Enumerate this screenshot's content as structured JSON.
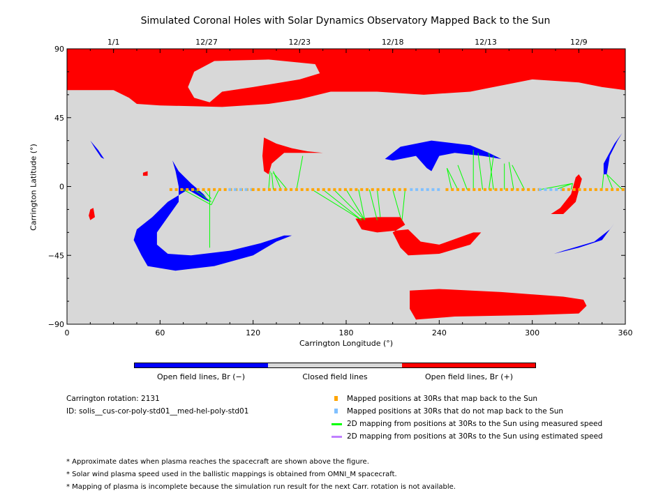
{
  "chart_data": {
    "type": "scatter",
    "title": "Simulated Coronal Holes with Solar Dynamics Observatory Mapped Back to the Sun",
    "xlabel": "Carrington Longitude (°)",
    "ylabel": "Carrington Latitude (°)",
    "xlim": [
      0,
      360
    ],
    "ylim": [
      -90,
      90
    ],
    "xticks": [
      0,
      60,
      120,
      180,
      240,
      300,
      360
    ],
    "yticks": [
      {
        "v": 90,
        "l": "90"
      },
      {
        "v": 45,
        "l": "45"
      },
      {
        "v": 0,
        "l": "0"
      },
      {
        "v": -45,
        "l": "−45"
      },
      {
        "v": -90,
        "l": "−90"
      }
    ],
    "top_dates": [
      {
        "lon": 30,
        "label": "1/1"
      },
      {
        "lon": 90,
        "label": "12/27"
      },
      {
        "lon": 150,
        "label": "12/23"
      },
      {
        "lon": 210,
        "label": "12/18"
      },
      {
        "lon": 270,
        "label": "12/13"
      },
      {
        "lon": 330,
        "label": "12/9"
      }
    ],
    "regions": [
      {
        "kind": "positive",
        "pts": [
          [
            0,
            90
          ],
          [
            360,
            90
          ],
          [
            360,
            63
          ],
          [
            345,
            65
          ],
          [
            330,
            68
          ],
          [
            300,
            70
          ],
          [
            260,
            62
          ],
          [
            230,
            60
          ],
          [
            200,
            62
          ],
          [
            170,
            62
          ],
          [
            150,
            57
          ],
          [
            130,
            54
          ],
          [
            100,
            52
          ],
          [
            60,
            53
          ],
          [
            45,
            54
          ],
          [
            40,
            58
          ],
          [
            30,
            63
          ],
          [
            0,
            63
          ]
        ]
      },
      {
        "kind": "closed",
        "pts": [
          [
            82,
            75
          ],
          [
            95,
            82
          ],
          [
            130,
            83
          ],
          [
            160,
            80
          ],
          [
            163,
            74
          ],
          [
            150,
            70
          ],
          [
            120,
            65
          ],
          [
            100,
            62
          ],
          [
            92,
            55
          ],
          [
            82,
            58
          ],
          [
            78,
            65
          ]
        ]
      },
      {
        "kind": "positive",
        "pts": [
          [
            221,
            -68
          ],
          [
            240,
            -67
          ],
          [
            280,
            -69
          ],
          [
            320,
            -72
          ],
          [
            333,
            -74
          ],
          [
            335,
            -78
          ],
          [
            330,
            -83
          ],
          [
            300,
            -84
          ],
          [
            250,
            -85
          ],
          [
            225,
            -87
          ],
          [
            221,
            -80
          ]
        ]
      },
      {
        "kind": "negative",
        "pts": [
          [
            68,
            17
          ],
          [
            72,
            10
          ],
          [
            80,
            2
          ],
          [
            88,
            -5
          ],
          [
            92,
            -10
          ],
          [
            88,
            -8
          ],
          [
            78,
            -2
          ],
          [
            65,
            -10
          ],
          [
            55,
            -20
          ],
          [
            45,
            -28
          ],
          [
            43,
            -35
          ],
          [
            48,
            -45
          ],
          [
            52,
            -52
          ],
          [
            70,
            -55
          ],
          [
            95,
            -52
          ],
          [
            120,
            -45
          ],
          [
            135,
            -36
          ],
          [
            145,
            -32
          ],
          [
            140,
            -32
          ],
          [
            125,
            -37
          ],
          [
            105,
            -42
          ],
          [
            80,
            -45
          ],
          [
            65,
            -44
          ],
          [
            58,
            -38
          ],
          [
            58,
            -30
          ],
          [
            65,
            -20
          ],
          [
            72,
            -10
          ],
          [
            72,
            0
          ],
          [
            70,
            10
          ]
        ]
      },
      {
        "kind": "negative",
        "pts": [
          [
            15,
            30
          ],
          [
            18,
            25
          ],
          [
            22,
            19
          ],
          [
            24,
            18
          ],
          [
            20,
            24
          ]
        ]
      },
      {
        "kind": "positive",
        "pts": [
          [
            15,
            -15
          ],
          [
            17,
            -14
          ],
          [
            18,
            -20
          ],
          [
            15,
            -22
          ],
          [
            14,
            -19
          ]
        ]
      },
      {
        "kind": "positive",
        "pts": [
          [
            49,
            9
          ],
          [
            52,
            10
          ],
          [
            52,
            7
          ],
          [
            49,
            7
          ]
        ]
      },
      {
        "kind": "positive",
        "pts": [
          [
            127,
            32
          ],
          [
            135,
            28
          ],
          [
            145,
            25
          ],
          [
            155,
            23
          ],
          [
            165,
            22
          ],
          [
            150,
            22
          ],
          [
            140,
            22
          ],
          [
            132,
            15
          ],
          [
            130,
            8
          ],
          [
            127,
            10
          ],
          [
            126,
            20
          ]
        ]
      },
      {
        "kind": "negative",
        "pts": [
          [
            205,
            18
          ],
          [
            215,
            26
          ],
          [
            235,
            30
          ],
          [
            260,
            27
          ],
          [
            272,
            22
          ],
          [
            280,
            18
          ],
          [
            268,
            20
          ],
          [
            250,
            22
          ],
          [
            240,
            20
          ],
          [
            235,
            10
          ],
          [
            232,
            12
          ],
          [
            225,
            20
          ],
          [
            210,
            17
          ]
        ]
      },
      {
        "kind": "positive",
        "pts": [
          [
            186,
            -21
          ],
          [
            200,
            -20
          ],
          [
            215,
            -20
          ],
          [
            218,
            -25
          ],
          [
            210,
            -30
          ],
          [
            215,
            -40
          ],
          [
            220,
            -45
          ],
          [
            240,
            -44
          ],
          [
            260,
            -38
          ],
          [
            267,
            -30
          ],
          [
            262,
            -30
          ],
          [
            240,
            -38
          ],
          [
            228,
            -36
          ],
          [
            220,
            -28
          ],
          [
            200,
            -30
          ],
          [
            190,
            -28
          ]
        ]
      },
      {
        "kind": "positive",
        "pts": [
          [
            312,
            -18
          ],
          [
            318,
            -14
          ],
          [
            325,
            -5
          ],
          [
            328,
            6
          ],
          [
            330,
            8
          ],
          [
            332,
            5
          ],
          [
            328,
            -10
          ],
          [
            320,
            -18
          ]
        ]
      },
      {
        "kind": "negative",
        "pts": [
          [
            348,
            8
          ],
          [
            350,
            20
          ],
          [
            355,
            30
          ],
          [
            358,
            35
          ],
          [
            353,
            28
          ],
          [
            346,
            15
          ],
          [
            346,
            8
          ]
        ]
      },
      {
        "kind": "negative",
        "pts": [
          [
            314,
            -44
          ],
          [
            330,
            -40
          ],
          [
            345,
            -35
          ],
          [
            353,
            -24
          ],
          [
            350,
            -28
          ],
          [
            340,
            -36
          ],
          [
            320,
            -42
          ]
        ]
      }
    ],
    "mapped_segments": [
      {
        "from": [
          67,
          120
        ],
        "status": "maps"
      },
      {
        "from": [
          105,
          120
        ],
        "status": "no_map"
      },
      {
        "from": [
          120,
          220
        ],
        "status": "maps"
      },
      {
        "from": [
          222,
          240
        ],
        "status": "no_map"
      },
      {
        "from": [
          245,
          305
        ],
        "status": "maps"
      },
      {
        "from": [
          305,
          320
        ],
        "status": "no_map"
      },
      {
        "from": [
          320,
          360
        ],
        "status": "maps"
      }
    ],
    "mapping_lines": [
      [
        75,
        93,
        -12
      ],
      [
        82,
        93,
        -10
      ],
      [
        88,
        93,
        -8
      ],
      [
        92,
        92,
        -40
      ],
      [
        98,
        93,
        -12
      ],
      [
        130,
        131,
        10
      ],
      [
        133,
        132,
        9
      ],
      [
        138,
        133,
        10
      ],
      [
        142,
        133,
        9
      ],
      [
        148,
        152,
        20
      ],
      [
        158,
        190,
        -22
      ],
      [
        165,
        190,
        -22
      ],
      [
        172,
        191,
        -21
      ],
      [
        180,
        192,
        -22
      ],
      [
        188,
        192,
        -22
      ],
      [
        195,
        200,
        -22
      ],
      [
        200,
        202,
        -20
      ],
      [
        210,
        215,
        -20
      ],
      [
        218,
        216,
        -22
      ],
      [
        248,
        245,
        12
      ],
      [
        252,
        245,
        12
      ],
      [
        258,
        252,
        14
      ],
      [
        262,
        262,
        24
      ],
      [
        268,
        265,
        22
      ],
      [
        272,
        275,
        20
      ],
      [
        275,
        272,
        22
      ],
      [
        282,
        282,
        15
      ],
      [
        288,
        285,
        16
      ],
      [
        295,
        287,
        14
      ],
      [
        305,
        326,
        2
      ],
      [
        315,
        326,
        2
      ],
      [
        325,
        326,
        2
      ],
      [
        345,
        346,
        8
      ],
      [
        352,
        348,
        8
      ],
      [
        358,
        348,
        8
      ]
    ],
    "legend": {
      "colorbar": [
        "Open field lines, Br (−)",
        "Closed field lines",
        "Open field lines, Br (+)"
      ],
      "items": [
        {
          "label": "Mapped positions at 30Rs that map back to the Sun",
          "color": "#ffa500"
        },
        {
          "label": "Mapped positions at 30Rs that do not map back to the Sun",
          "color": "#80c0ff"
        },
        {
          "label": "2D mapping from positions at 30Rs to the Sun using measured speed",
          "color": "#00ff00"
        },
        {
          "label": "2D mapping from positions at 30Rs to the Sun using estimated speed",
          "color": "#c080ff"
        }
      ]
    },
    "colors": {
      "negative": "#0000ff",
      "closed": "#d8d8d8",
      "positive": "#ff0000"
    }
  },
  "info": {
    "rotation": "Carrington rotation: 2131",
    "id": "ID: solis__cus-cor-poly-std01__med-hel-poly-std01"
  },
  "notes": [
    "* Approximate dates when plasma reaches the spacecraft are shown above the figure.",
    "* Solar wind plasma speed used in the ballistic mappings is obtained from OMNI_M spacecraft.",
    "* Mapping of plasma is incomplete because the simulation run result for the next Carr. rotation is not available."
  ]
}
